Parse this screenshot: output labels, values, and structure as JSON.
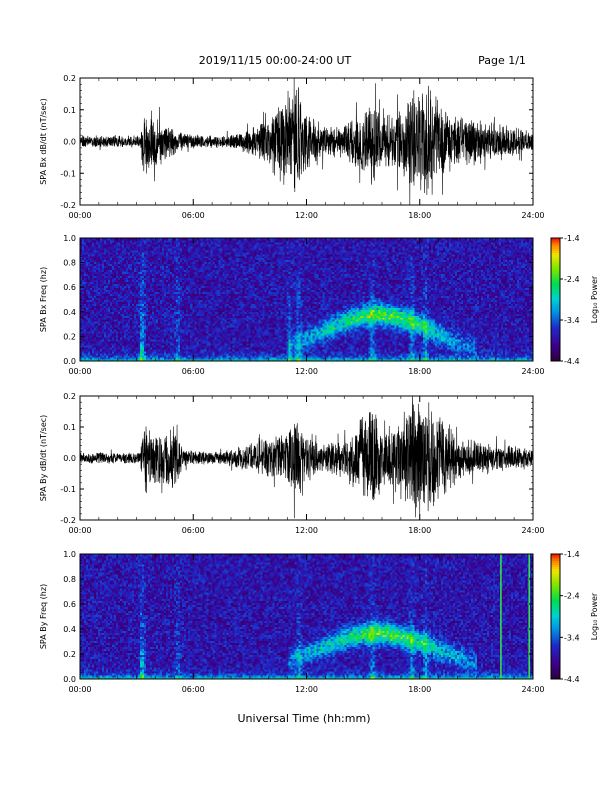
{
  "header": {
    "title": "2019/11/15  00:00-24:00 UT",
    "page": "Page 1/1"
  },
  "xaxis": {
    "label": "Universal Time (hh:mm)",
    "ticks": [
      "00:00",
      "06:00",
      "12:00",
      "18:00",
      "24:00"
    ],
    "tick_hours": [
      0,
      6,
      12,
      18,
      24
    ],
    "range": [
      0,
      24
    ]
  },
  "colorbar": {
    "label": "Log₁₀ Power",
    "ticks": [
      "-1.4",
      "-2.4",
      "-3.4",
      "-4.4"
    ],
    "tick_values": [
      -1.4,
      -2.4,
      -3.4,
      -4.4
    ],
    "range": [
      -4.4,
      -1.4
    ]
  },
  "chart_data": [
    {
      "type": "line",
      "ylabel": "SPA Bx dB/dt (nT/sec)",
      "ylim": [
        -0.2,
        0.2
      ],
      "yticks": [
        "0.2",
        "0.1",
        "0.0",
        "-0.1",
        "-0.2"
      ],
      "ytick_values": [
        0.2,
        0.1,
        0.0,
        -0.1,
        -0.2
      ],
      "envelope": {
        "hour": [
          0,
          2,
          3.2,
          3.4,
          3.9,
          4.5,
          5.5,
          7,
          8.5,
          9.5,
          10.5,
          11,
          11.5,
          12,
          13,
          14,
          15,
          15.5,
          16,
          17,
          17.5,
          18,
          18.5,
          19,
          20,
          21,
          22,
          23,
          24
        ],
        "amplitude": [
          0.02,
          0.02,
          0.02,
          0.13,
          0.09,
          0.06,
          0.03,
          0.02,
          0.03,
          0.06,
          0.13,
          0.18,
          0.2,
          0.1,
          0.05,
          0.06,
          0.12,
          0.15,
          0.08,
          0.1,
          0.18,
          0.2,
          0.2,
          0.15,
          0.08,
          0.08,
          0.06,
          0.05,
          0.03
        ]
      }
    },
    {
      "type": "heatmap",
      "ylabel": "SPA Bx Freq (hz)",
      "ylim": [
        0,
        1.0
      ],
      "yticks": [
        "1.0",
        "0.8",
        "0.6",
        "0.4",
        "0.2",
        "0.0"
      ],
      "ytick_values": [
        1.0,
        0.8,
        0.6,
        0.4,
        0.2,
        0.0
      ],
      "zlim": [
        -4.4,
        -1.4
      ],
      "features": {
        "band_hour": [
          11,
          12,
          13,
          14,
          15,
          16,
          17,
          18,
          19,
          20,
          21
        ],
        "band_freq": [
          0.12,
          0.18,
          0.25,
          0.32,
          0.37,
          0.38,
          0.35,
          0.3,
          0.22,
          0.15,
          0.1
        ],
        "band_strength": [
          0.3,
          0.45,
          0.6,
          0.75,
          0.9,
          1.0,
          0.95,
          0.8,
          0.6,
          0.4,
          0.25
        ],
        "event_hours": [
          3.3,
          5.2,
          11.1,
          11.6,
          15.5,
          17.6,
          18.3
        ],
        "event_strength": [
          0.9,
          0.45,
          0.5,
          0.55,
          0.6,
          0.6,
          0.6
        ],
        "marker_hours": []
      }
    },
    {
      "type": "line",
      "ylabel": "SPA By dB/dt (nT/sec)",
      "ylim": [
        -0.2,
        0.2
      ],
      "yticks": [
        "0.2",
        "0.1",
        "0.0",
        "-0.1",
        "-0.2"
      ],
      "ytick_values": [
        0.2,
        0.1,
        0.0,
        -0.1,
        -0.2
      ],
      "envelope": {
        "hour": [
          0,
          2,
          3.2,
          3.4,
          3.9,
          4.5,
          5,
          5.5,
          7,
          8,
          9,
          10,
          11,
          11.5,
          12,
          13,
          14,
          15,
          15.5,
          16,
          17,
          17.5,
          18,
          18.5,
          19,
          20,
          21,
          22,
          23,
          24
        ],
        "amplitude": [
          0.02,
          0.02,
          0.02,
          0.15,
          0.09,
          0.1,
          0.13,
          0.03,
          0.02,
          0.03,
          0.05,
          0.07,
          0.1,
          0.14,
          0.08,
          0.05,
          0.07,
          0.14,
          0.2,
          0.1,
          0.13,
          0.2,
          0.2,
          0.2,
          0.15,
          0.08,
          0.06,
          0.05,
          0.04,
          0.03
        ]
      }
    },
    {
      "type": "heatmap",
      "ylabel": "SPA By Freq (hz)",
      "ylim": [
        0,
        1.0
      ],
      "yticks": [
        "1.0",
        "0.8",
        "0.6",
        "0.4",
        "0.2",
        "0.0"
      ],
      "ytick_values": [
        1.0,
        0.8,
        0.6,
        0.4,
        0.2,
        0.0
      ],
      "zlim": [
        -4.4,
        -1.4
      ],
      "features": {
        "band_hour": [
          11,
          12,
          13,
          14,
          15,
          16,
          17,
          18,
          19,
          20,
          21
        ],
        "band_freq": [
          0.14,
          0.2,
          0.26,
          0.32,
          0.36,
          0.37,
          0.34,
          0.3,
          0.24,
          0.18,
          0.12
        ],
        "band_strength": [
          0.3,
          0.45,
          0.6,
          0.75,
          0.9,
          1.0,
          0.95,
          0.8,
          0.6,
          0.45,
          0.3
        ],
        "event_hours": [
          3.3,
          5.2,
          11.6,
          15.5,
          17.6,
          18.3
        ],
        "event_strength": [
          0.85,
          0.4,
          0.5,
          0.6,
          0.55,
          0.55
        ],
        "marker_hours": [
          22.3,
          23.8
        ]
      }
    }
  ]
}
